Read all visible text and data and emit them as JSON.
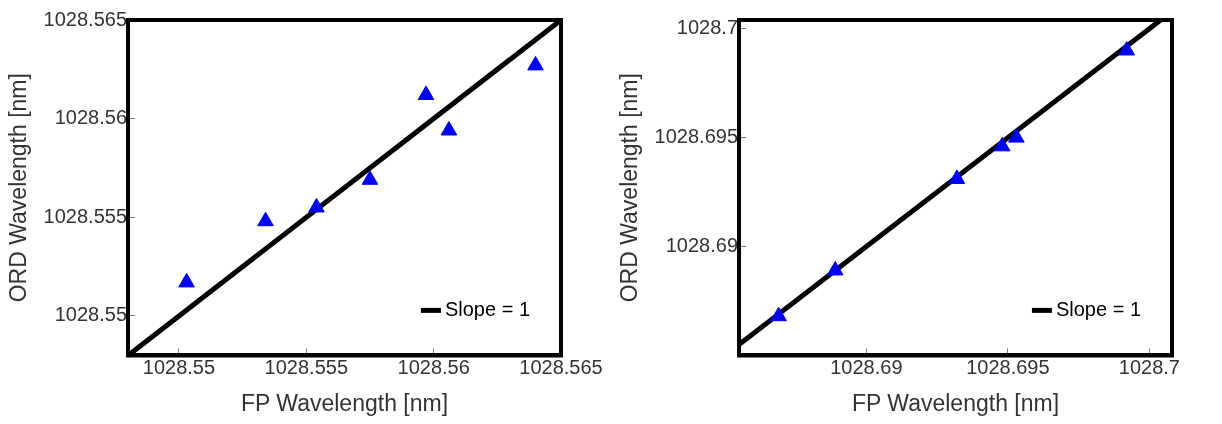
{
  "chart_data": [
    {
      "type": "scatter",
      "xlabel": "FP Wavelength [nm]",
      "ylabel": "ORD Wavelength [nm]",
      "xlim": [
        1028.548,
        1028.565
      ],
      "ylim": [
        1028.548,
        1028.565
      ],
      "xticks": [
        1028.55,
        1028.555,
        1028.56,
        1028.565
      ],
      "yticks": [
        1028.55,
        1028.555,
        1028.56,
        1028.565
      ],
      "grid": false,
      "legend": "bottom right",
      "marker": "triangle",
      "series": [
        {
          "color": "#0000ff",
          "x": [
            1028.5503,
            1028.5534,
            1028.5554,
            1028.5575,
            1028.5597,
            1028.5606,
            1028.564
          ],
          "values": [
            1028.5517,
            1028.5548,
            1028.5555,
            1028.5569,
            1028.5612,
            1028.5594,
            1028.5627
          ]
        },
        {
          "type": "line",
          "name": "Slope = 1",
          "color": "#000000",
          "marker": "none",
          "line_style": "solid",
          "x": [
            1028.548,
            1028.565
          ],
          "values": [
            1028.548,
            1028.565
          ]
        }
      ]
    },
    {
      "type": "scatter",
      "xlabel": "FP Wavelength [nm]",
      "ylabel": "ORD Wavelength [nm]",
      "xlim": [
        1028.6855,
        1028.7008
      ],
      "ylim": [
        1028.685,
        1028.7004
      ],
      "xticks": [
        1028.69,
        1028.695,
        1028.7
      ],
      "yticks": [
        1028.69,
        1028.695,
        1028.7
      ],
      "grid": false,
      "legend": "bottom right",
      "marker": "triangle",
      "series": [
        {
          "color": "#0000ff",
          "x": [
            1028.6869,
            1028.6889,
            1028.6932,
            1028.6948,
            1028.6953,
            1028.6992
          ],
          "values": [
            1028.6868,
            1028.6889,
            1028.6931,
            1028.6946,
            1028.695,
            1028.699
          ]
        },
        {
          "type": "line",
          "name": "Slope = 1",
          "color": "#000000",
          "marker": "none",
          "line_style": "solid",
          "x": [
            1028.6855,
            1028.7004
          ],
          "values": [
            1028.6855,
            1028.7004
          ]
        }
      ]
    }
  ]
}
